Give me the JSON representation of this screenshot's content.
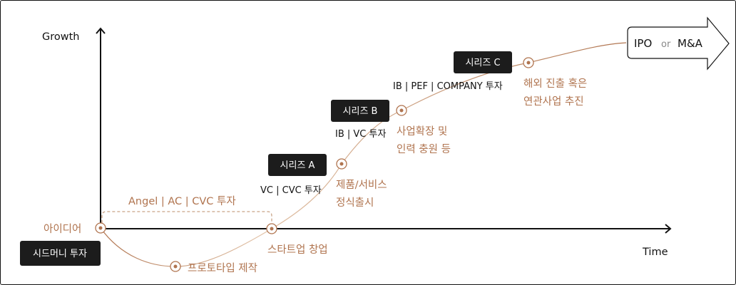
{
  "axes": {
    "y_label": "Growth",
    "x_label": "Time"
  },
  "colors": {
    "accent": "#b0744f",
    "badge": "#1c1c1c"
  },
  "goal": {
    "ipo": "IPO",
    "or": "or",
    "ma": "M&A"
  },
  "stages": [
    {
      "milestone": "아이디어",
      "badge": "시드머니 투자"
    },
    {
      "milestone": "프로토타입 제작"
    },
    {
      "milestone": "스타트업 창업",
      "investors": "Angel | AC | CVC 투자"
    },
    {
      "milestone_line1": "제품/서비스",
      "milestone_line2": "정식출시",
      "badge": "시리즈 A",
      "investors": "VC | CVC 투자"
    },
    {
      "milestone_line1": "사업확장 및",
      "milestone_line2": "인력 충원 등",
      "badge": "시리즈 B",
      "investors": "IB | VC 투자"
    },
    {
      "milestone_line1": "해외 진출 혹은",
      "milestone_line2": "연관사업 추진",
      "badge": "시리즈 C",
      "investors": "IB | PEF | COMPANY 투자"
    }
  ]
}
